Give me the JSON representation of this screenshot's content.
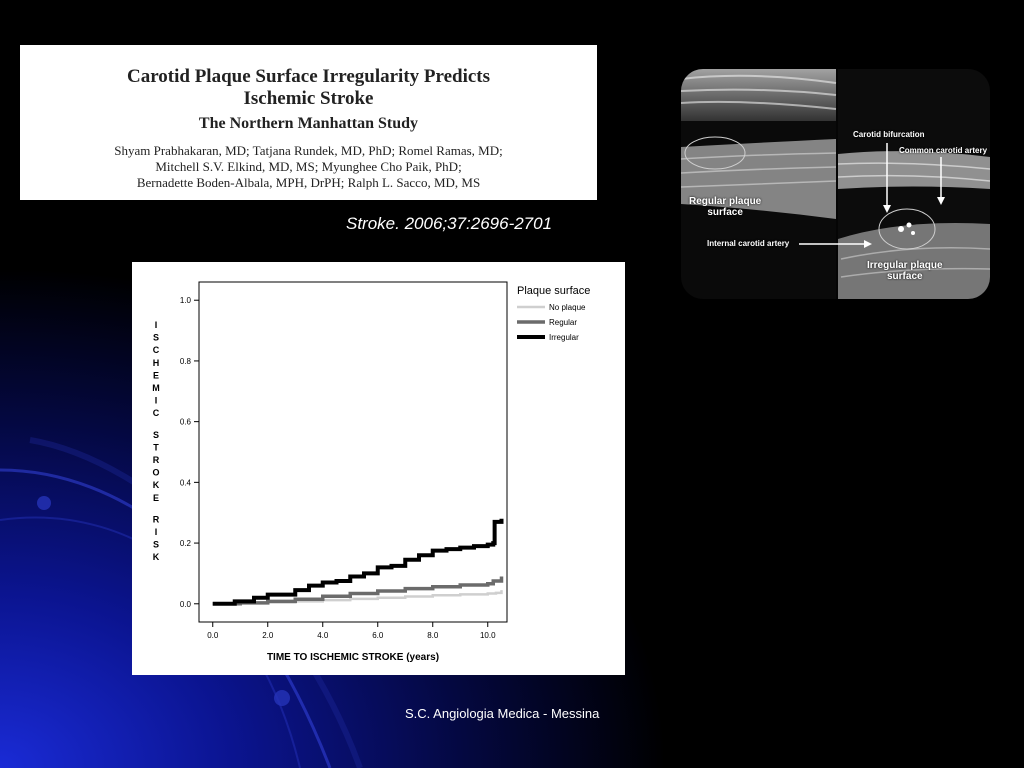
{
  "article": {
    "title_line1": "Carotid Plaque Surface Irregularity Predicts",
    "title_line2": "Ischemic Stroke",
    "subtitle": "The Northern Manhattan Study",
    "authors_line1": "Shyam Prabhakaran, MD; Tatjana Rundek, MD, PhD; Romel Ramas, MD;",
    "authors_line2": "Mitchell S.V. Elkind, MD, MS; Myunghee Cho Paik, PhD;",
    "authors_line3": "Bernadette Boden-Albala, MPH, DrPH; Ralph L. Sacco, MD, MS"
  },
  "citation": "Stroke. 2006;37:2696-2701",
  "ultrasound": {
    "label_bifurcation": "Carotid bifurcation",
    "label_common": "Common carotid artery",
    "label_internal": "Internal carotid artery",
    "label_regular_1": "Regular plaque",
    "label_regular_2": "surface",
    "label_irregular_1": "Irregular plaque",
    "label_irregular_2": "surface"
  },
  "chart_data": {
    "type": "line",
    "xlabel": "TIME TO ISCHEMIC STROKE (years)",
    "ylabel": "ISCHEMIC STROKE RISK",
    "xlim": [
      -0.5,
      10.7
    ],
    "ylim": [
      -0.06,
      1.06
    ],
    "x_ticks": [
      "0.0",
      "2.0",
      "4.0",
      "6.0",
      "8.0",
      "10.0"
    ],
    "x_tick_values": [
      0,
      2,
      4,
      6,
      8,
      10
    ],
    "y_ticks": [
      "0.0",
      "0.2",
      "0.4",
      "0.6",
      "0.8",
      "1.0"
    ],
    "y_tick_values": [
      0,
      0.2,
      0.4,
      0.6,
      0.8,
      1.0
    ],
    "legend_title": "Plaque surface",
    "legend_position": "right",
    "grid": false,
    "series": [
      {
        "name": "No plaque",
        "color": "#cfcfcf",
        "points": [
          [
            0,
            0
          ],
          [
            1,
            0.002
          ],
          [
            2,
            0.005
          ],
          [
            3,
            0.008
          ],
          [
            4,
            0.012
          ],
          [
            5,
            0.016
          ],
          [
            6,
            0.02
          ],
          [
            7,
            0.024
          ],
          [
            8,
            0.028
          ],
          [
            9,
            0.031
          ],
          [
            10,
            0.034
          ],
          [
            10.3,
            0.036
          ],
          [
            10.5,
            0.045
          ]
        ]
      },
      {
        "name": "Regular",
        "color": "#6b6b6b",
        "points": [
          [
            0,
            0
          ],
          [
            1,
            0.003
          ],
          [
            2,
            0.008
          ],
          [
            3,
            0.015
          ],
          [
            4,
            0.025
          ],
          [
            5,
            0.034
          ],
          [
            6,
            0.042
          ],
          [
            7,
            0.05
          ],
          [
            8,
            0.056
          ],
          [
            9,
            0.062
          ],
          [
            10,
            0.066
          ],
          [
            10.2,
            0.075
          ],
          [
            10.5,
            0.09
          ]
        ]
      },
      {
        "name": "Irregular",
        "color": "#000000",
        "points": [
          [
            0,
            0
          ],
          [
            0.8,
            0.008
          ],
          [
            1.5,
            0.02
          ],
          [
            2,
            0.03
          ],
          [
            3,
            0.045
          ],
          [
            3.5,
            0.06
          ],
          [
            4,
            0.07
          ],
          [
            4.5,
            0.075
          ],
          [
            5,
            0.09
          ],
          [
            5.5,
            0.1
          ],
          [
            6,
            0.12
          ],
          [
            6.5,
            0.125
          ],
          [
            7,
            0.145
          ],
          [
            7.5,
            0.16
          ],
          [
            8,
            0.175
          ],
          [
            8.5,
            0.18
          ],
          [
            9,
            0.185
          ],
          [
            9.5,
            0.19
          ],
          [
            10,
            0.195
          ],
          [
            10.2,
            0.2
          ],
          [
            10.25,
            0.27
          ],
          [
            10.5,
            0.28
          ]
        ]
      }
    ]
  },
  "footer": "S.C. Angiologia Medica - Messina"
}
